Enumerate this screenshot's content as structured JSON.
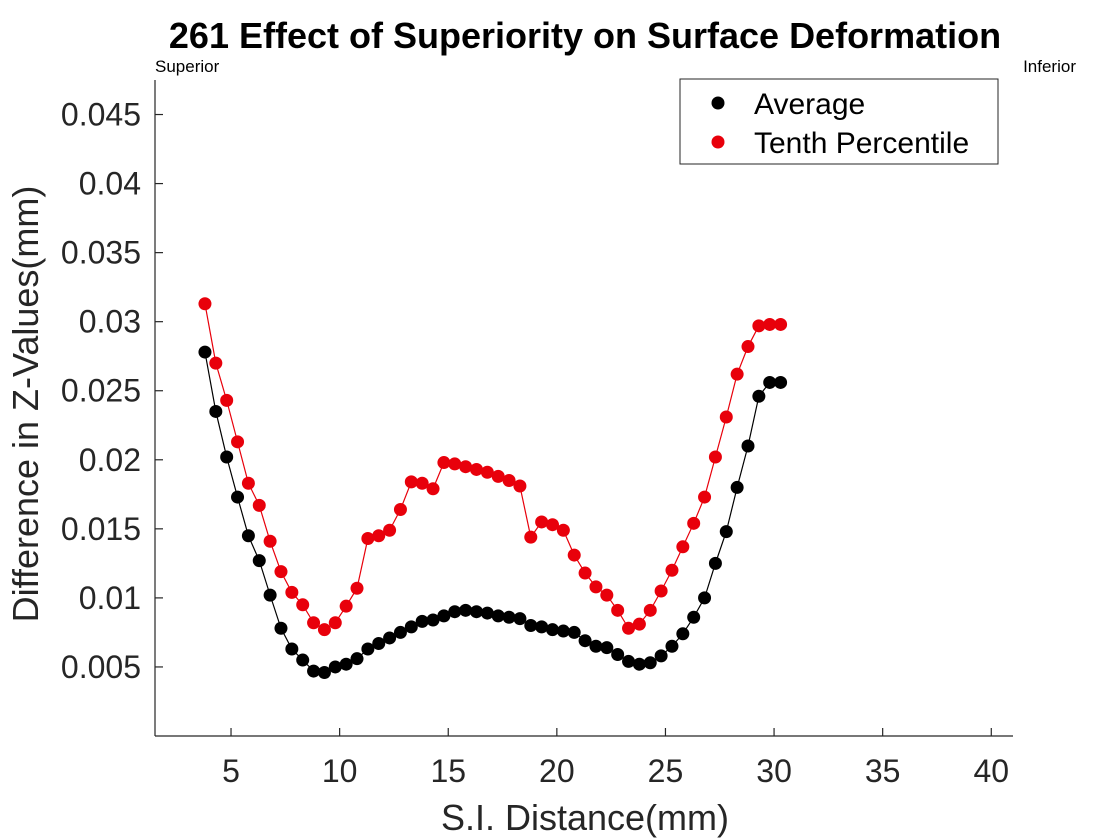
{
  "chart_data": {
    "type": "scatter",
    "title": "261  Effect of Superiority on Surface Deformation",
    "xlabel": "S.I. Distance(mm)",
    "ylabel": "Difference in Z-Values(mm)",
    "annotations": {
      "left": "Superior",
      "right": "Inferior"
    },
    "xlim": [
      1.5,
      41
    ],
    "ylim": [
      0,
      0.0475
    ],
    "xticks": [
      5,
      10,
      15,
      20,
      25,
      30,
      35,
      40
    ],
    "xtick_labels": [
      "5",
      "10",
      "15",
      "20",
      "25",
      "30",
      "35",
      "40"
    ],
    "yticks": [
      0.005,
      0.01,
      0.015,
      0.02,
      0.025,
      0.03,
      0.035,
      0.04,
      0.045
    ],
    "ytick_labels": [
      "0.005",
      "0.01",
      "0.015",
      "0.02",
      "0.025",
      "0.03",
      "0.035",
      "0.04",
      "0.045"
    ],
    "grid": false,
    "legend_position": "top-right",
    "x": [
      3.8,
      4.3,
      4.8,
      5.3,
      5.8,
      6.3,
      6.8,
      7.3,
      7.8,
      8.3,
      8.8,
      9.3,
      9.8,
      10.3,
      10.8,
      11.3,
      11.8,
      12.3,
      12.8,
      13.3,
      13.8,
      14.3,
      14.8,
      15.3,
      15.8,
      16.3,
      16.8,
      17.3,
      17.8,
      18.3,
      18.8,
      19.3,
      19.8,
      20.3,
      20.8,
      21.3,
      21.8,
      22.3,
      22.8,
      23.3,
      23.8,
      24.3,
      24.8,
      25.3,
      25.8,
      26.3,
      26.8,
      27.3,
      27.8,
      28.3,
      28.8,
      29.3,
      29.8,
      30.3
    ],
    "series": [
      {
        "name": "Average",
        "color": "#000000",
        "values": [
          0.0278,
          0.0235,
          0.0202,
          0.0173,
          0.0145,
          0.0127,
          0.0102,
          0.0078,
          0.0063,
          0.0055,
          0.0047,
          0.0046,
          0.005,
          0.0052,
          0.0056,
          0.0063,
          0.0067,
          0.0071,
          0.0075,
          0.0079,
          0.0083,
          0.0084,
          0.0087,
          0.009,
          0.0091,
          0.009,
          0.0089,
          0.0087,
          0.0086,
          0.0085,
          0.008,
          0.0079,
          0.0077,
          0.0076,
          0.0075,
          0.0069,
          0.0065,
          0.0064,
          0.0059,
          0.0054,
          0.0052,
          0.0053,
          0.0058,
          0.0065,
          0.0074,
          0.0086,
          0.01,
          0.0125,
          0.0148,
          0.018,
          0.021,
          0.0246,
          0.0256,
          0.0256
        ]
      },
      {
        "name": "Tenth Percentile",
        "color": "#e8000b",
        "values": [
          0.0313,
          0.027,
          0.0243,
          0.0213,
          0.0183,
          0.0167,
          0.0141,
          0.0119,
          0.0104,
          0.0095,
          0.0082,
          0.0077,
          0.0082,
          0.0094,
          0.0107,
          0.0143,
          0.0145,
          0.0149,
          0.0164,
          0.0184,
          0.0183,
          0.0179,
          0.0198,
          0.0197,
          0.0195,
          0.0193,
          0.0191,
          0.0188,
          0.0185,
          0.0181,
          0.0144,
          0.0155,
          0.0153,
          0.0149,
          0.0131,
          0.0118,
          0.0108,
          0.0102,
          0.0091,
          0.0078,
          0.0081,
          0.0091,
          0.0105,
          0.012,
          0.0137,
          0.0154,
          0.0173,
          0.0202,
          0.0231,
          0.0262,
          0.0282,
          0.0297,
          0.0298,
          0.0298
        ]
      }
    ]
  }
}
